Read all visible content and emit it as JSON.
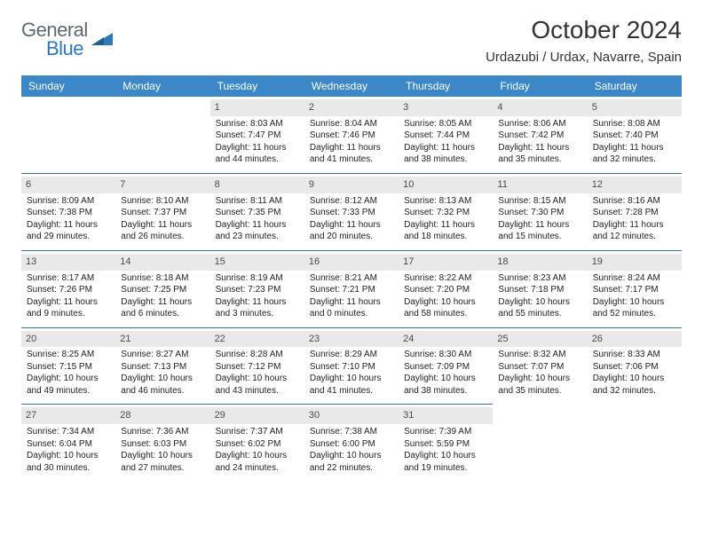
{
  "brand": {
    "word1": "General",
    "word2": "Blue",
    "triangle_color": "#2f79b9",
    "text1_color": "#5f6a72",
    "text2_color": "#2f79b9"
  },
  "header": {
    "title": "October 2024",
    "location": "Urdazubi / Urdax, Navarre, Spain"
  },
  "colors": {
    "header_row_bg": "#3b87c8",
    "header_row_text": "#ffffff",
    "daynum_bg": "#e9e9e9",
    "cell_border": "#3b6f9c"
  },
  "weekdays": [
    "Sunday",
    "Monday",
    "Tuesday",
    "Wednesday",
    "Thursday",
    "Friday",
    "Saturday"
  ],
  "weeks": [
    [
      {
        "n": "",
        "sunrise": "",
        "sunset": "",
        "daylight": ""
      },
      {
        "n": "",
        "sunrise": "",
        "sunset": "",
        "daylight": ""
      },
      {
        "n": "1",
        "sunrise": "Sunrise: 8:03 AM",
        "sunset": "Sunset: 7:47 PM",
        "daylight": "Daylight: 11 hours and 44 minutes."
      },
      {
        "n": "2",
        "sunrise": "Sunrise: 8:04 AM",
        "sunset": "Sunset: 7:46 PM",
        "daylight": "Daylight: 11 hours and 41 minutes."
      },
      {
        "n": "3",
        "sunrise": "Sunrise: 8:05 AM",
        "sunset": "Sunset: 7:44 PM",
        "daylight": "Daylight: 11 hours and 38 minutes."
      },
      {
        "n": "4",
        "sunrise": "Sunrise: 8:06 AM",
        "sunset": "Sunset: 7:42 PM",
        "daylight": "Daylight: 11 hours and 35 minutes."
      },
      {
        "n": "5",
        "sunrise": "Sunrise: 8:08 AM",
        "sunset": "Sunset: 7:40 PM",
        "daylight": "Daylight: 11 hours and 32 minutes."
      }
    ],
    [
      {
        "n": "6",
        "sunrise": "Sunrise: 8:09 AM",
        "sunset": "Sunset: 7:38 PM",
        "daylight": "Daylight: 11 hours and 29 minutes."
      },
      {
        "n": "7",
        "sunrise": "Sunrise: 8:10 AM",
        "sunset": "Sunset: 7:37 PM",
        "daylight": "Daylight: 11 hours and 26 minutes."
      },
      {
        "n": "8",
        "sunrise": "Sunrise: 8:11 AM",
        "sunset": "Sunset: 7:35 PM",
        "daylight": "Daylight: 11 hours and 23 minutes."
      },
      {
        "n": "9",
        "sunrise": "Sunrise: 8:12 AM",
        "sunset": "Sunset: 7:33 PM",
        "daylight": "Daylight: 11 hours and 20 minutes."
      },
      {
        "n": "10",
        "sunrise": "Sunrise: 8:13 AM",
        "sunset": "Sunset: 7:32 PM",
        "daylight": "Daylight: 11 hours and 18 minutes."
      },
      {
        "n": "11",
        "sunrise": "Sunrise: 8:15 AM",
        "sunset": "Sunset: 7:30 PM",
        "daylight": "Daylight: 11 hours and 15 minutes."
      },
      {
        "n": "12",
        "sunrise": "Sunrise: 8:16 AM",
        "sunset": "Sunset: 7:28 PM",
        "daylight": "Daylight: 11 hours and 12 minutes."
      }
    ],
    [
      {
        "n": "13",
        "sunrise": "Sunrise: 8:17 AM",
        "sunset": "Sunset: 7:26 PM",
        "daylight": "Daylight: 11 hours and 9 minutes."
      },
      {
        "n": "14",
        "sunrise": "Sunrise: 8:18 AM",
        "sunset": "Sunset: 7:25 PM",
        "daylight": "Daylight: 11 hours and 6 minutes."
      },
      {
        "n": "15",
        "sunrise": "Sunrise: 8:19 AM",
        "sunset": "Sunset: 7:23 PM",
        "daylight": "Daylight: 11 hours and 3 minutes."
      },
      {
        "n": "16",
        "sunrise": "Sunrise: 8:21 AM",
        "sunset": "Sunset: 7:21 PM",
        "daylight": "Daylight: 11 hours and 0 minutes."
      },
      {
        "n": "17",
        "sunrise": "Sunrise: 8:22 AM",
        "sunset": "Sunset: 7:20 PM",
        "daylight": "Daylight: 10 hours and 58 minutes."
      },
      {
        "n": "18",
        "sunrise": "Sunrise: 8:23 AM",
        "sunset": "Sunset: 7:18 PM",
        "daylight": "Daylight: 10 hours and 55 minutes."
      },
      {
        "n": "19",
        "sunrise": "Sunrise: 8:24 AM",
        "sunset": "Sunset: 7:17 PM",
        "daylight": "Daylight: 10 hours and 52 minutes."
      }
    ],
    [
      {
        "n": "20",
        "sunrise": "Sunrise: 8:25 AM",
        "sunset": "Sunset: 7:15 PM",
        "daylight": "Daylight: 10 hours and 49 minutes."
      },
      {
        "n": "21",
        "sunrise": "Sunrise: 8:27 AM",
        "sunset": "Sunset: 7:13 PM",
        "daylight": "Daylight: 10 hours and 46 minutes."
      },
      {
        "n": "22",
        "sunrise": "Sunrise: 8:28 AM",
        "sunset": "Sunset: 7:12 PM",
        "daylight": "Daylight: 10 hours and 43 minutes."
      },
      {
        "n": "23",
        "sunrise": "Sunrise: 8:29 AM",
        "sunset": "Sunset: 7:10 PM",
        "daylight": "Daylight: 10 hours and 41 minutes."
      },
      {
        "n": "24",
        "sunrise": "Sunrise: 8:30 AM",
        "sunset": "Sunset: 7:09 PM",
        "daylight": "Daylight: 10 hours and 38 minutes."
      },
      {
        "n": "25",
        "sunrise": "Sunrise: 8:32 AM",
        "sunset": "Sunset: 7:07 PM",
        "daylight": "Daylight: 10 hours and 35 minutes."
      },
      {
        "n": "26",
        "sunrise": "Sunrise: 8:33 AM",
        "sunset": "Sunset: 7:06 PM",
        "daylight": "Daylight: 10 hours and 32 minutes."
      }
    ],
    [
      {
        "n": "27",
        "sunrise": "Sunrise: 7:34 AM",
        "sunset": "Sunset: 6:04 PM",
        "daylight": "Daylight: 10 hours and 30 minutes."
      },
      {
        "n": "28",
        "sunrise": "Sunrise: 7:36 AM",
        "sunset": "Sunset: 6:03 PM",
        "daylight": "Daylight: 10 hours and 27 minutes."
      },
      {
        "n": "29",
        "sunrise": "Sunrise: 7:37 AM",
        "sunset": "Sunset: 6:02 PM",
        "daylight": "Daylight: 10 hours and 24 minutes."
      },
      {
        "n": "30",
        "sunrise": "Sunrise: 7:38 AM",
        "sunset": "Sunset: 6:00 PM",
        "daylight": "Daylight: 10 hours and 22 minutes."
      },
      {
        "n": "31",
        "sunrise": "Sunrise: 7:39 AM",
        "sunset": "Sunset: 5:59 PM",
        "daylight": "Daylight: 10 hours and 19 minutes."
      },
      {
        "n": "",
        "sunrise": "",
        "sunset": "",
        "daylight": ""
      },
      {
        "n": "",
        "sunrise": "",
        "sunset": "",
        "daylight": ""
      }
    ]
  ]
}
